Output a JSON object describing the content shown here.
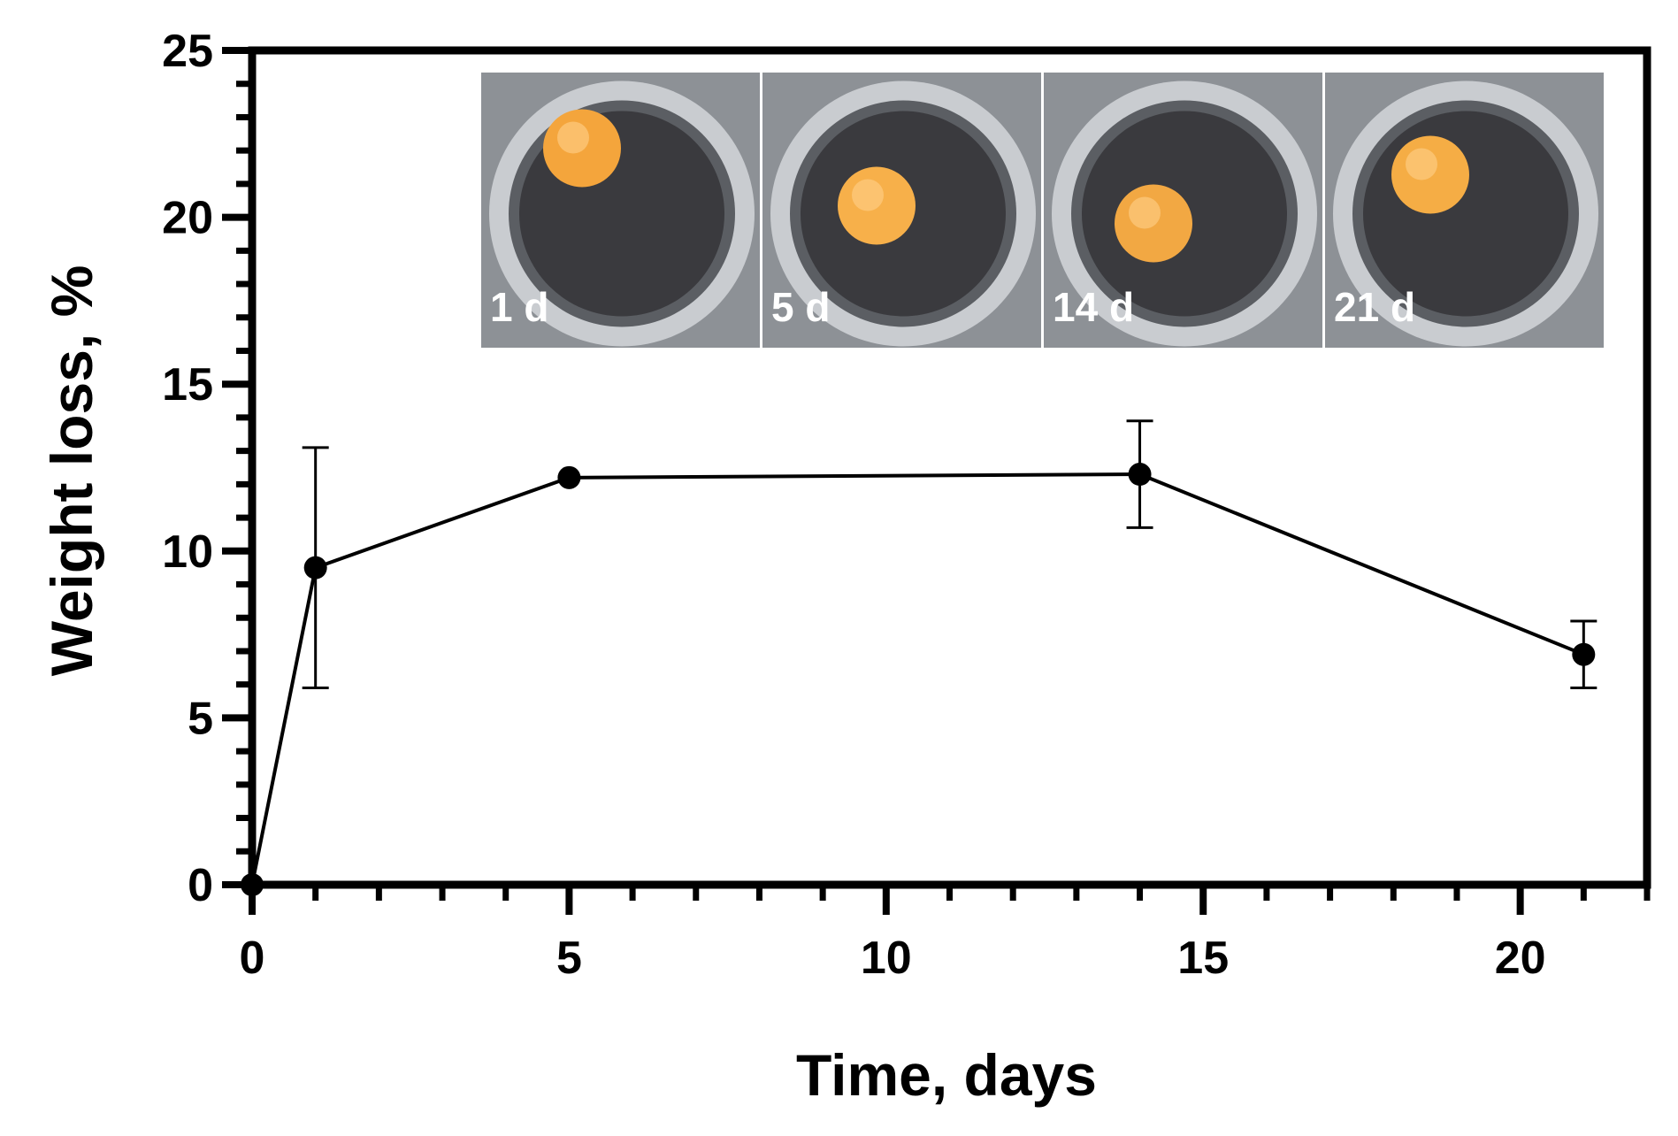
{
  "chart_data": {
    "type": "line",
    "xlabel": "Time, days",
    "ylabel": "Weight loss, %",
    "xlim": [
      0,
      22
    ],
    "ylim": [
      0,
      25
    ],
    "x_ticks": [
      0,
      5,
      10,
      15,
      20
    ],
    "x_tick_labels": [
      "0",
      "5",
      "10",
      "15",
      "20"
    ],
    "x_minor_step": 1,
    "y_ticks": [
      0,
      5,
      10,
      15,
      20,
      25
    ],
    "y_tick_labels": [
      "0",
      "5",
      "10",
      "15",
      "20",
      "25"
    ],
    "y_minor_step": 1,
    "grid": false,
    "series": [
      {
        "x": [
          0,
          1,
          5,
          14,
          21
        ],
        "y": [
          0,
          9.5,
          12.2,
          12.3,
          6.9
        ],
        "error": [
          0,
          3.6,
          0,
          1.6,
          1.0
        ]
      }
    ],
    "inset_photos": [
      {
        "label": "1 d",
        "disc": "#f4a53c"
      },
      {
        "label": "5 d",
        "disc": "#f7b04a"
      },
      {
        "label": "14 d",
        "disc": "#f2a843"
      },
      {
        "label": "21 d",
        "disc": "#f5ad45"
      }
    ],
    "colors": {
      "line": "#000000",
      "marker": "#000000",
      "photo_background": "#3a3a3e",
      "well_rim": "#c9ccd0"
    }
  }
}
